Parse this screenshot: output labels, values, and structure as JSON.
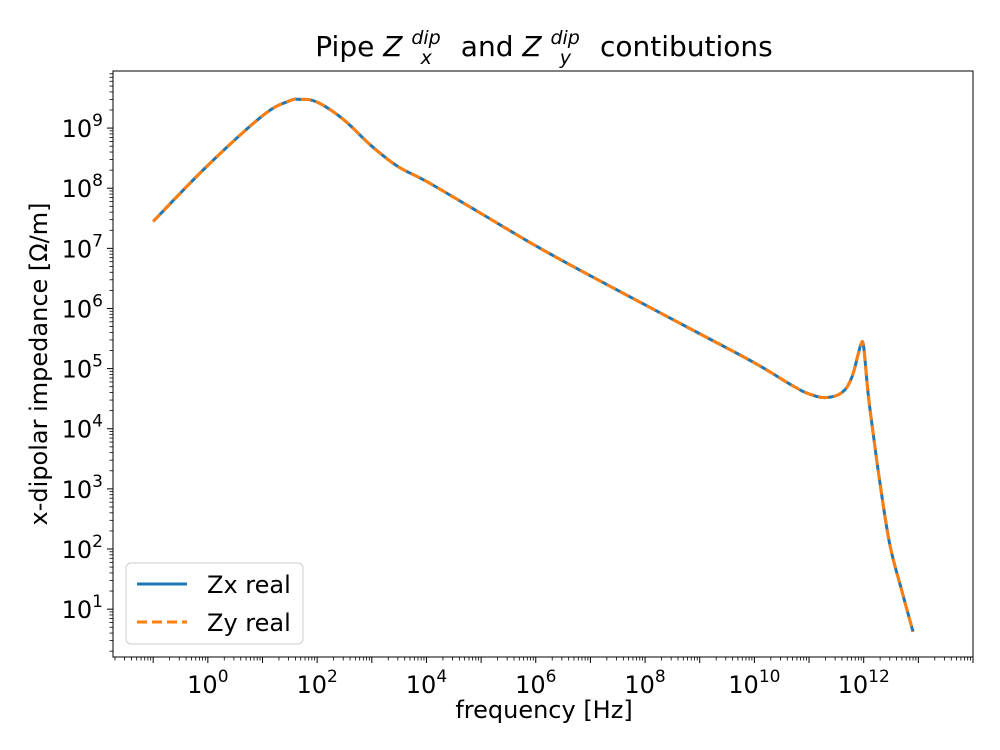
{
  "chart_data": {
    "type": "line",
    "title": {
      "prefix": "Pipe ",
      "zx_base": "Z",
      "zx_sup": "dip",
      "zx_sub": "x",
      "and": " and ",
      "zy_base": "Z",
      "zy_sup": "dip",
      "zy_sub": "y",
      "suffix": " contibutions"
    },
    "xlabel": "frequency [Hz]",
    "ylabel": "x-dipolar impedance [Ω/m]",
    "x_scale": "log",
    "y_scale": "log",
    "xlim": [
      0.0184,
      100000000000000.0
    ],
    "ylim": [
      1.6,
      8900000000.0
    ],
    "x_tick_labels": [
      {
        "base": "10",
        "exp": "0",
        "value": 1
      },
      {
        "base": "10",
        "exp": "2",
        "value": 100
      },
      {
        "base": "10",
        "exp": "4",
        "value": 10000
      },
      {
        "base": "10",
        "exp": "6",
        "value": 1000000
      },
      {
        "base": "10",
        "exp": "8",
        "value": 100000000
      },
      {
        "base": "10",
        "exp": "10",
        "value": 10000000000
      },
      {
        "base": "10",
        "exp": "12",
        "value": 1000000000000
      }
    ],
    "y_tick_labels": [
      {
        "base": "10",
        "exp": "1",
        "value": 10
      },
      {
        "base": "10",
        "exp": "2",
        "value": 100
      },
      {
        "base": "10",
        "exp": "3",
        "value": 1000
      },
      {
        "base": "10",
        "exp": "4",
        "value": 10000
      },
      {
        "base": "10",
        "exp": "5",
        "value": 100000
      },
      {
        "base": "10",
        "exp": "6",
        "value": 1000000
      },
      {
        "base": "10",
        "exp": "7",
        "value": 10000000
      },
      {
        "base": "10",
        "exp": "8",
        "value": 100000000
      },
      {
        "base": "10",
        "exp": "9",
        "value": 1000000000
      }
    ],
    "grid": false,
    "legend_position": "bottom-left",
    "series": [
      {
        "name": "Zx real",
        "color": "#1f77b4",
        "style": "solid",
        "x": [
          0.1,
          1,
          10,
          30,
          50,
          100,
          300,
          1000,
          3000,
          10000,
          100000,
          1000000,
          10000000,
          100000000,
          1000000000,
          10000000000,
          50000000000,
          100000000000,
          200000000000,
          400000000000,
          600000000000,
          800000000000,
          900000000000,
          1000000000000,
          1200000000000,
          1500000000000,
          2000000000000,
          3000000000000,
          5000000000000,
          8000000000000
        ],
        "y": [
          28000000,
          240000000,
          1600000000,
          2800000000,
          3000000000,
          2700000000,
          1400000000,
          500000000,
          230000000,
          130000000,
          38000000,
          11000000,
          3500000,
          1150000,
          380000,
          125000,
          52000,
          38000,
          33000,
          40000,
          70000,
          180000,
          260000,
          230000,
          40000,
          8000,
          1200,
          120,
          20,
          4.2
        ]
      },
      {
        "name": "Zy real",
        "color": "#ff7f0e",
        "style": "dashed",
        "x": [
          0.1,
          1,
          10,
          30,
          50,
          100,
          300,
          1000,
          3000,
          10000,
          100000,
          1000000,
          10000000,
          100000000,
          1000000000,
          10000000000,
          50000000000,
          100000000000,
          200000000000,
          400000000000,
          600000000000,
          800000000000,
          900000000000,
          1000000000000,
          1200000000000,
          1500000000000,
          2000000000000,
          3000000000000,
          5000000000000,
          8000000000000
        ],
        "y": [
          28000000,
          240000000,
          1600000000,
          2800000000,
          3000000000,
          2700000000,
          1400000000,
          500000000,
          230000000,
          130000000,
          38000000,
          11000000,
          3500000,
          1150000,
          380000,
          125000,
          52000,
          38000,
          33000,
          40000,
          70000,
          180000,
          260000,
          230000,
          40000,
          8000,
          1200,
          120,
          20,
          4.2
        ]
      }
    ]
  }
}
